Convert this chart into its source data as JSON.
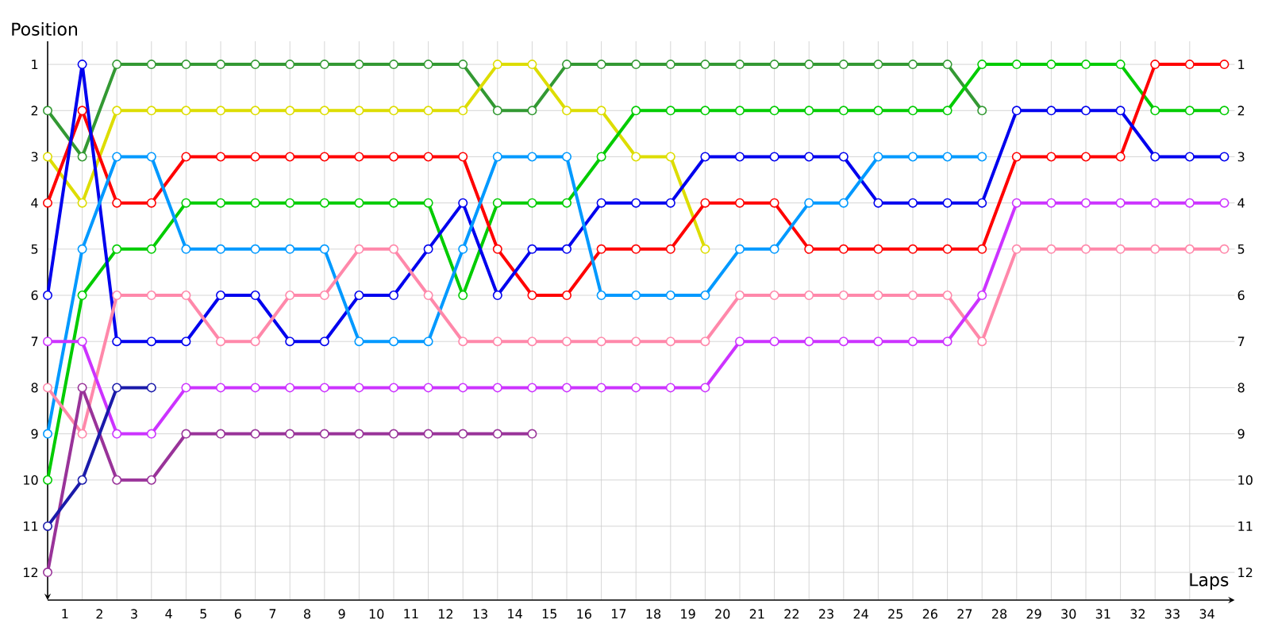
{
  "chart_data": {
    "type": "line",
    "xlabel": "Laps",
    "ylabel": "Position",
    "x": [
      0,
      1,
      2,
      3,
      4,
      5,
      6,
      7,
      8,
      9,
      10,
      11,
      12,
      13,
      14,
      15,
      16,
      17,
      18,
      19,
      20,
      21,
      22,
      23,
      24,
      25,
      26,
      27,
      28,
      29,
      30,
      31,
      32,
      33,
      34
    ],
    "xlim": [
      0,
      34.3
    ],
    "xticks": [
      {
        "value": 0.5,
        "label": "1"
      },
      {
        "value": 1.5,
        "label": "2"
      },
      {
        "value": 2.5,
        "label": "3"
      },
      {
        "value": 3.5,
        "label": "4"
      },
      {
        "value": 4.5,
        "label": "5"
      },
      {
        "value": 5.5,
        "label": "6"
      },
      {
        "value": 6.5,
        "label": "7"
      },
      {
        "value": 7.5,
        "label": "8"
      },
      {
        "value": 8.5,
        "label": "9"
      },
      {
        "value": 9.5,
        "label": "10"
      },
      {
        "value": 10.5,
        "label": "11"
      },
      {
        "value": 11.5,
        "label": "12"
      },
      {
        "value": 12.5,
        "label": "13"
      },
      {
        "value": 13.5,
        "label": "14"
      },
      {
        "value": 14.5,
        "label": "15"
      },
      {
        "value": 15.5,
        "label": "16"
      },
      {
        "value": 16.5,
        "label": "17"
      },
      {
        "value": 17.5,
        "label": "18"
      },
      {
        "value": 18.5,
        "label": "19"
      },
      {
        "value": 19.5,
        "label": "20"
      },
      {
        "value": 20.5,
        "label": "21"
      },
      {
        "value": 21.5,
        "label": "22"
      },
      {
        "value": 22.5,
        "label": "23"
      },
      {
        "value": 23.5,
        "label": "24"
      },
      {
        "value": 24.5,
        "label": "25"
      },
      {
        "value": 25.5,
        "label": "26"
      },
      {
        "value": 26.5,
        "label": "27"
      },
      {
        "value": 27.5,
        "label": "28"
      },
      {
        "value": 28.5,
        "label": "29"
      },
      {
        "value": 29.5,
        "label": "30"
      },
      {
        "value": 30.5,
        "label": "31"
      },
      {
        "value": 31.5,
        "label": "32"
      },
      {
        "value": 32.5,
        "label": "33"
      },
      {
        "value": 33.5,
        "label": "34"
      }
    ],
    "ylim": [
      12.6,
      0.5
    ],
    "yticks": [
      1,
      2,
      3,
      4,
      5,
      6,
      7,
      8,
      9,
      10,
      11,
      12
    ],
    "y2lim": [
      12.6,
      0.5
    ],
    "y2ticks": [
      1,
      2,
      3,
      4,
      5,
      6,
      7,
      8,
      9,
      10,
      11,
      12
    ],
    "grid": true,
    "marker": "circle",
    "line_style": "solid",
    "series": [
      {
        "color": "#339933",
        "values": [
          2,
          3,
          1,
          1,
          1,
          1,
          1,
          1,
          1,
          1,
          1,
          1,
          1,
          2,
          2,
          1,
          1,
          1,
          1,
          1,
          1,
          1,
          1,
          1,
          1,
          1,
          1,
          2,
          null,
          null,
          null,
          null,
          null,
          null,
          null
        ]
      },
      {
        "color": "#dddd00",
        "values": [
          3,
          4,
          2,
          2,
          2,
          2,
          2,
          2,
          2,
          2,
          2,
          2,
          2,
          1,
          1,
          2,
          2,
          3,
          3,
          5,
          null,
          null,
          null,
          null,
          null,
          null,
          null,
          null,
          null,
          null,
          null,
          null,
          null,
          null,
          null
        ]
      },
      {
        "color": "#00cc00",
        "values": [
          10,
          6,
          5,
          5,
          4,
          4,
          4,
          4,
          4,
          4,
          4,
          4,
          6,
          4,
          4,
          4,
          3,
          2,
          2,
          2,
          2,
          2,
          2,
          2,
          2,
          2,
          2,
          1,
          1,
          1,
          1,
          1,
          2,
          2,
          2
        ]
      },
      {
        "color": "#ff0000",
        "values": [
          4,
          2,
          4,
          4,
          3,
          3,
          3,
          3,
          3,
          3,
          3,
          3,
          3,
          5,
          6,
          6,
          5,
          5,
          5,
          4,
          4,
          4,
          5,
          5,
          5,
          5,
          5,
          5,
          3,
          3,
          3,
          3,
          1,
          1,
          1
        ]
      },
      {
        "color": "#0000ee",
        "values": [
          6,
          1,
          7,
          7,
          7,
          6,
          6,
          7,
          7,
          6,
          6,
          5,
          4,
          6,
          5,
          5,
          4,
          4,
          4,
          3,
          3,
          3,
          3,
          3,
          4,
          4,
          4,
          4,
          2,
          2,
          2,
          2,
          3,
          3,
          3
        ]
      },
      {
        "color": "#0099ff",
        "values": [
          9,
          5,
          3,
          3,
          5,
          5,
          5,
          5,
          5,
          7,
          7,
          7,
          5,
          3,
          3,
          3,
          6,
          6,
          6,
          6,
          5,
          5,
          4,
          4,
          3,
          3,
          3,
          3,
          null,
          null,
          null,
          null,
          null,
          null,
          null
        ]
      },
      {
        "color": "#ff88aa",
        "values": [
          8,
          9,
          6,
          6,
          6,
          7,
          7,
          6,
          6,
          5,
          5,
          6,
          7,
          7,
          7,
          7,
          7,
          7,
          7,
          7,
          6,
          6,
          6,
          6,
          6,
          6,
          6,
          7,
          5,
          5,
          5,
          5,
          5,
          5,
          5
        ]
      },
      {
        "color": "#cc33ff",
        "values": [
          7,
          7,
          9,
          9,
          8,
          8,
          8,
          8,
          8,
          8,
          8,
          8,
          8,
          8,
          8,
          8,
          8,
          8,
          8,
          8,
          7,
          7,
          7,
          7,
          7,
          7,
          7,
          6,
          4,
          4,
          4,
          4,
          4,
          4,
          4
        ]
      },
      {
        "color": "#993399",
        "values": [
          12,
          8,
          10,
          10,
          9,
          9,
          9,
          9,
          9,
          9,
          9,
          9,
          9,
          9,
          9,
          null,
          null,
          null,
          null,
          null,
          null,
          null,
          null,
          null,
          null,
          null,
          null,
          null,
          null,
          null,
          null,
          null,
          null,
          null,
          null
        ]
      },
      {
        "color": "#1a1aaa",
        "values": [
          11,
          10,
          8,
          8,
          null,
          null,
          null,
          null,
          null,
          null,
          null,
          null,
          null,
          null,
          null,
          null,
          null,
          null,
          null,
          null,
          null,
          null,
          null,
          null,
          null,
          null,
          null,
          null,
          null,
          null,
          null,
          null,
          null,
          null,
          null
        ]
      }
    ]
  }
}
